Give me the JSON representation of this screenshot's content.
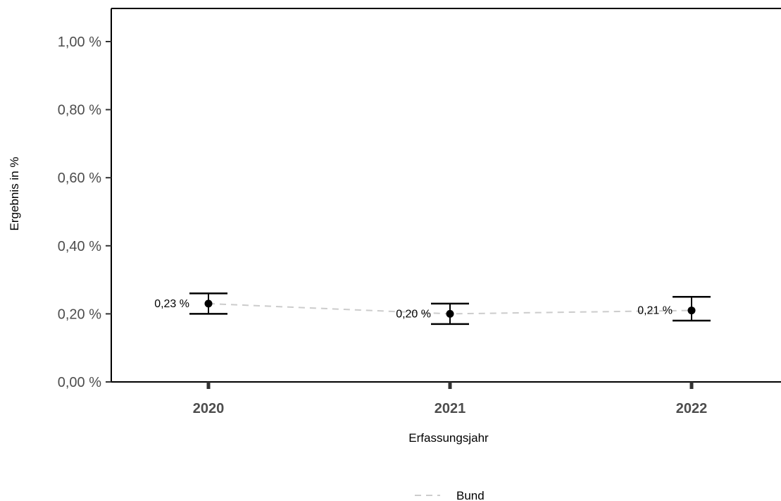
{
  "chart_data": {
    "type": "scatter",
    "title": "",
    "xlabel": "Erfassungsjahr",
    "ylabel": "Ergebnis in %",
    "categories": [
      "2020",
      "2021",
      "2022"
    ],
    "y_ticks": [
      "0,00 %",
      "0,20 %",
      "0,40 %",
      "0,60 %",
      "0,80 %",
      "1,00 %"
    ],
    "ylim": [
      0,
      1.0
    ],
    "grid": false,
    "legend_position": "bottom",
    "series": [
      {
        "name": "Bund",
        "values": [
          0.23,
          0.2,
          0.21
        ],
        "ci_lower": [
          0.2,
          0.17,
          0.18
        ],
        "ci_upper": [
          0.26,
          0.23,
          0.25
        ],
        "labels": [
          "0,23 %",
          "0,20 %",
          "0,21 %"
        ],
        "line_color": "#cccccc",
        "line_style": "dashed",
        "point_color": "#000000"
      }
    ]
  }
}
